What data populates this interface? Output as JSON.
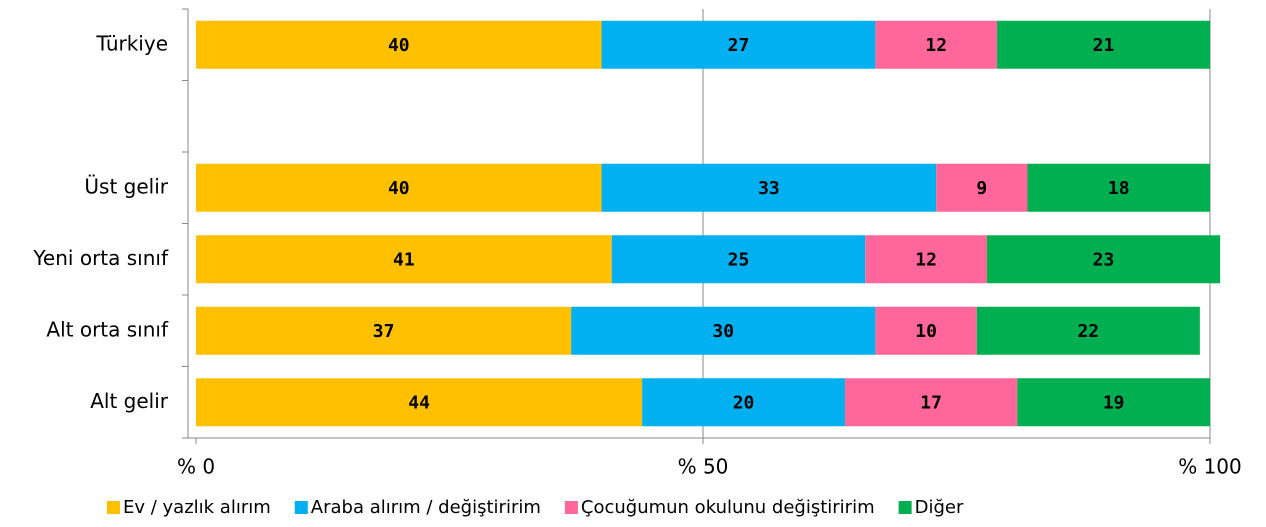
{
  "chart_data": {
    "type": "stacked-bar-horizontal",
    "categories": [
      "Türkiye",
      null,
      "Üst gelir",
      "Yeni orta sınıf",
      "Alt orta sınıf",
      "Alt gelir"
    ],
    "series": [
      {
        "name": "Ev / yazlık alırım",
        "color": "#FFC000",
        "values": [
          40,
          null,
          40,
          41,
          37,
          44
        ]
      },
      {
        "name": "Araba alırım / değiştiririm",
        "color": "#00B0F0",
        "values": [
          27,
          null,
          33,
          25,
          30,
          20
        ]
      },
      {
        "name": "Çocuğumun okulunu değiştiririm",
        "color": "#FF6699",
        "values": [
          12,
          null,
          9,
          12,
          10,
          17
        ]
      },
      {
        "name": "Diğer",
        "color": "#00B050",
        "values": [
          21,
          null,
          18,
          23,
          22,
          19
        ]
      }
    ],
    "xlim": [
      0,
      100
    ],
    "xticks": [
      {
        "value": 0,
        "label": "% 0"
      },
      {
        "value": 50,
        "label": "% 50"
      },
      {
        "value": 100,
        "label": "% 100"
      }
    ],
    "grid": true,
    "legend": "bottom"
  }
}
